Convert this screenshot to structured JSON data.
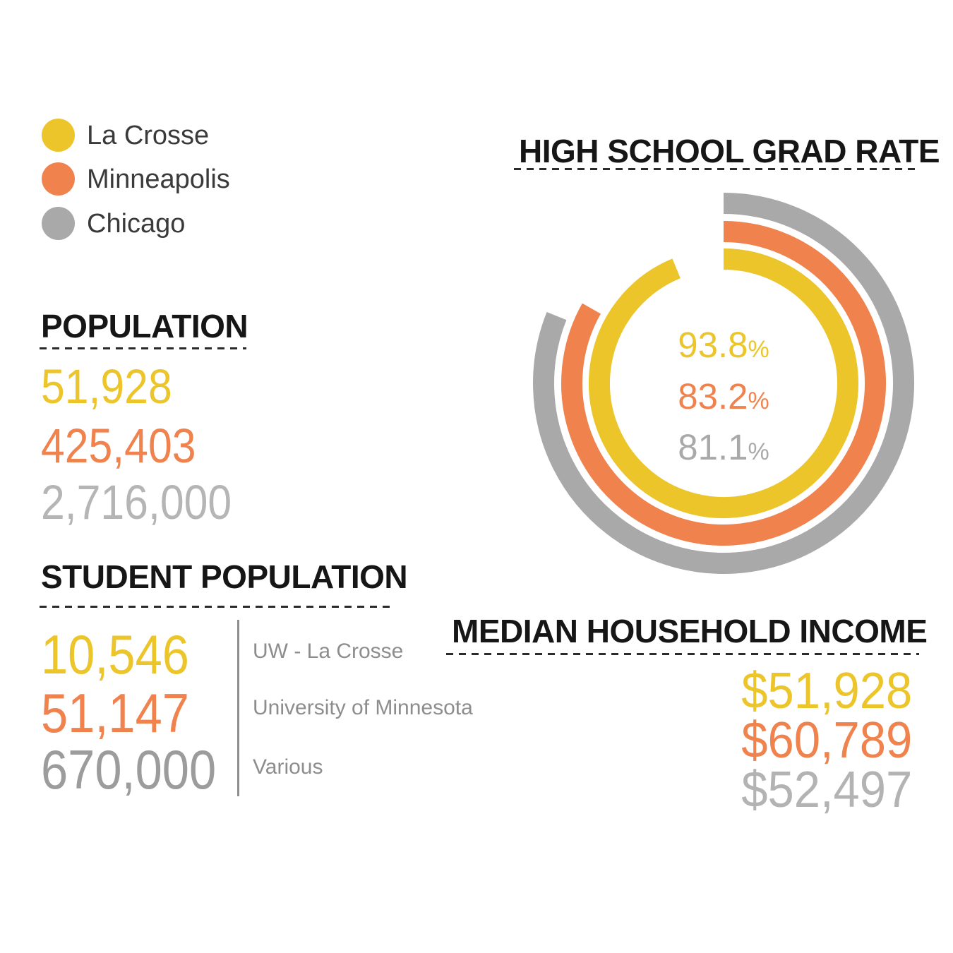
{
  "palette": {
    "la_crosse": "#ECC52A",
    "minneapolis": "#F0824E",
    "chicago": "#A9A9A9",
    "chicago_light": "#B5B5B5",
    "chicago_dark": "#9C9C9C",
    "title_text": "#161616",
    "muted_text": "#8D8D8D"
  },
  "legend": {
    "items": [
      {
        "label": "La Crosse",
        "color": "#ECC52A"
      },
      {
        "label": "Minneapolis",
        "color": "#F0824E"
      },
      {
        "label": "Chicago",
        "color": "#A9A9A9"
      }
    ]
  },
  "population": {
    "title": "POPULATION",
    "values": [
      {
        "city": "La Crosse",
        "text": "51,928",
        "color": "#ECC52A"
      },
      {
        "city": "Minneapolis",
        "text": "425,403",
        "color": "#F0824E"
      },
      {
        "city": "Chicago",
        "text": "2,716,000",
        "color": "#B5B5B5"
      }
    ]
  },
  "student_population": {
    "title": "STUDENT POPULATION",
    "rows": [
      {
        "value": "10,546",
        "institution": "UW - La Crosse",
        "color": "#ECC52A"
      },
      {
        "value": "51,147",
        "institution": "University of Minnesota",
        "color": "#F0824E"
      },
      {
        "value": "670,000",
        "institution": "Various",
        "color": "#9C9C9C"
      }
    ]
  },
  "grad_rate": {
    "title": "HIGH SCHOOL GRAD RATE",
    "center_labels": [
      {
        "value": "93.8",
        "suffix": "%",
        "color": "#ECC52A"
      },
      {
        "value": "83.2",
        "suffix": "%",
        "color": "#F0824E"
      },
      {
        "value": "81.1",
        "suffix": "%",
        "color": "#A9A9A9"
      }
    ]
  },
  "median_income": {
    "title": "MEDIAN HOUSEHOLD INCOME",
    "values": [
      {
        "city": "La Crosse",
        "text": "$51,928",
        "color": "#ECC52A"
      },
      {
        "city": "Minneapolis",
        "text": "$60,789",
        "color": "#F0824E"
      },
      {
        "city": "Chicago",
        "text": "$52,497",
        "color": "#B3B3B3"
      }
    ]
  },
  "chart_data": [
    {
      "type": "radial-bar",
      "title": "HIGH SCHOOL GRAD RATE",
      "unit": "%",
      "start_angle_deg": 0,
      "direction": "clockwise",
      "legend_position": "top-left-of-page",
      "series": [
        {
          "name": "La Crosse",
          "value": 93.8,
          "color": "#ECC52A",
          "ring": "inner"
        },
        {
          "name": "Minneapolis",
          "value": 83.2,
          "color": "#F0824E",
          "ring": "middle"
        },
        {
          "name": "Chicago",
          "value": 81.1,
          "color": "#A9A9A9",
          "ring": "outer"
        }
      ]
    },
    {
      "type": "table",
      "title": "POPULATION",
      "categories": [
        "La Crosse",
        "Minneapolis",
        "Chicago"
      ],
      "values": [
        51928,
        425403,
        2716000
      ]
    },
    {
      "type": "table",
      "title": "STUDENT POPULATION",
      "categories": [
        "UW - La Crosse",
        "University of Minnesota",
        "Various"
      ],
      "values": [
        10546,
        51147,
        670000
      ]
    },
    {
      "type": "table",
      "title": "MEDIAN HOUSEHOLD INCOME",
      "unit": "USD",
      "categories": [
        "La Crosse",
        "Minneapolis",
        "Chicago"
      ],
      "values": [
        51928,
        60789,
        52497
      ]
    }
  ]
}
